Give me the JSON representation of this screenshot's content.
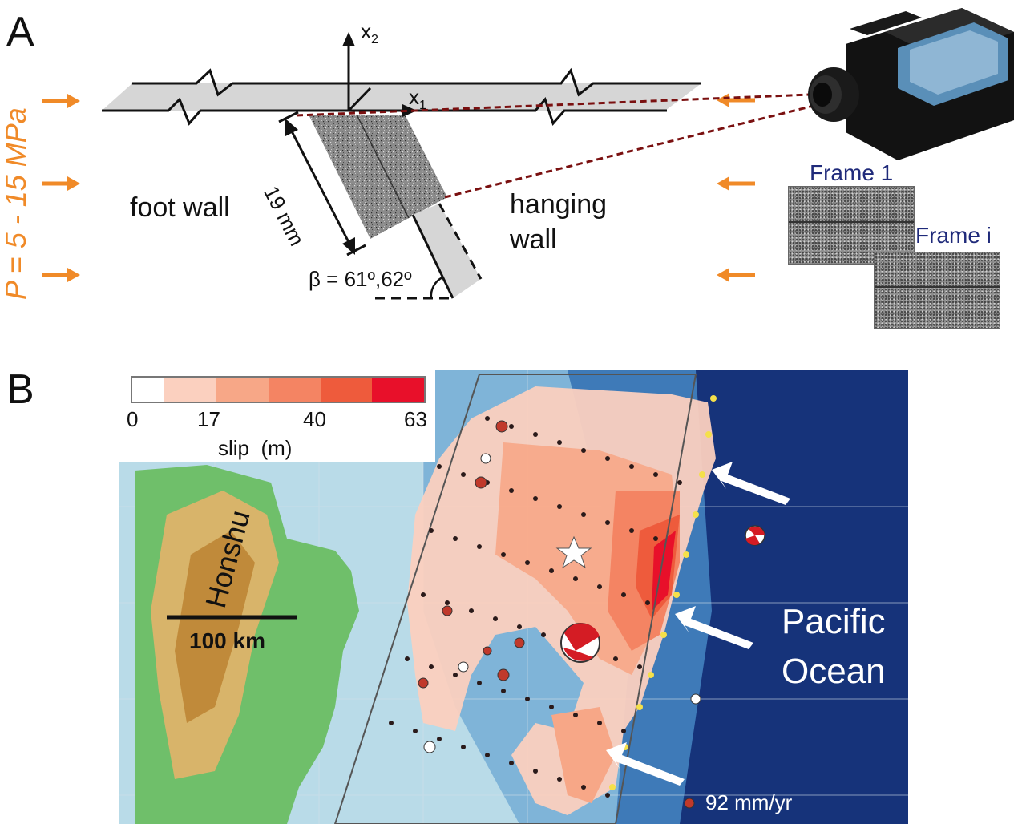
{
  "panel_a": {
    "letter": "A",
    "axis_x2": "x",
    "axis_x2_sub": "2",
    "axis_x1": "x",
    "axis_x1_sub": "1",
    "length_label": "19 mm",
    "angle_label": "β = 61º,62º",
    "foot_wall": "foot wall",
    "hanging_wall_1": "hanging",
    "hanging_wall_2": "wall",
    "pressure": "P = 5 - 15 MPa",
    "frame1": "Frame 1",
    "framei": "Frame i"
  },
  "panel_b": {
    "letter": "B",
    "colorbar": {
      "ticks": [
        "0",
        "17",
        "40",
        "63"
      ],
      "label": "slip  (m)",
      "colors": [
        "#ffffff",
        "#fbd0bf",
        "#f7a787",
        "#f48463",
        "#ee5b3c",
        "#e8102a"
      ]
    },
    "honshu": "Honshu",
    "scale": "100 km",
    "pacific_1": "Pacific",
    "pacific_2": "Ocean",
    "velocity": "92 mm/yr"
  },
  "colors": {
    "pressure_orange": "#f08a28",
    "ray_red": "#7a1010",
    "frame_blue": "#1f2a7a",
    "ocean_deep": "#0f2a66",
    "ocean_shallow": "#4f8fc8"
  }
}
